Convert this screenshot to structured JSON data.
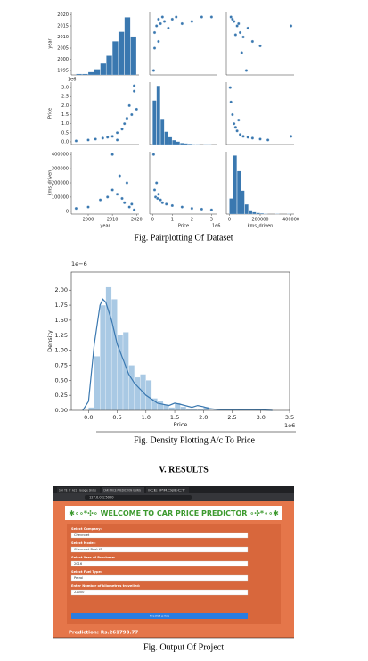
{
  "figures": [
    {
      "caption": "Fig. Pairplotting Of Dataset"
    },
    {
      "caption": "Fig. Density Plotting A/c To Price"
    },
    {
      "caption": "Fig. Output Of Project"
    }
  ],
  "section_heading": "V.   RESULTS",
  "chart_data": [
    {
      "type": "pairplot",
      "color": "#3a78b0",
      "variables": [
        {
          "name": "year",
          "lim": [
            1993,
            2021
          ],
          "ticks": [
            1995,
            2000,
            2005,
            2010,
            2015,
            2020
          ],
          "xticks": [
            2000,
            2010,
            2020
          ]
        },
        {
          "name": "Price",
          "lim": [
            -0.15,
            3.3
          ],
          "ticks": [
            {
              "value": 0,
              "label": "0.0"
            },
            0.5,
            {
              "value": 1,
              "label": "1.0"
            },
            1.5,
            {
              "value": 2,
              "label": "2.0"
            },
            2.5,
            {
              "value": 3,
              "label": "3.0"
            }
          ],
          "xticks": [
            0,
            1,
            2,
            3
          ],
          "offset": "1e6"
        },
        {
          "name": "kms_driven",
          "lim": [
            -20000,
            420000
          ],
          "ticks": [
            0,
            100000,
            200000,
            300000,
            400000
          ],
          "xticks": [
            0,
            200000,
            400000
          ]
        }
      ],
      "panels": [
        {
          "type": "hist",
          "bins": [
            1995,
            1997.5,
            2000,
            2002.5,
            2005,
            2007.5,
            2010,
            2012.5,
            2015,
            2017.5,
            2020
          ],
          "counts": [
            1,
            1,
            3,
            6,
            12,
            20,
            35,
            45,
            60,
            40
          ],
          "ylim": [
            0,
            65
          ]
        },
        {
          "type": "scatter",
          "x": [
            0.1,
            0.2,
            0.3,
            0.4,
            0.5,
            0.6,
            0.8,
            1.0,
            1.2,
            1.5,
            2.0,
            2.5,
            3.0,
            0.1,
            0.3,
            0.05
          ],
          "y": [
            2012,
            2015,
            2018,
            2016,
            2019,
            2017,
            2014,
            2018,
            2019,
            2016,
            2017,
            2019,
            2019,
            2005,
            2008,
            1995
          ]
        },
        {
          "type": "scatter",
          "x": [
            10000,
            30000,
            50000,
            70000,
            90000,
            120000,
            150000,
            200000,
            40000,
            60000,
            20000,
            400000,
            80000,
            110000
          ],
          "y": [
            2019,
            2017,
            2015,
            2012,
            2010,
            2014,
            2008,
            2006,
            2011,
            2016,
            2018,
            2015,
            2003,
            1995
          ]
        },
        {
          "type": "scatter",
          "x": [
            1995,
            2000,
            2003,
            2006,
            2008,
            2010,
            2012,
            2014,
            2015,
            2016,
            2017,
            2018,
            2019,
            2019,
            2020,
            2012
          ],
          "y": [
            0.05,
            0.1,
            0.15,
            0.2,
            0.25,
            0.3,
            0.5,
            0.7,
            1.0,
            1.3,
            2.0,
            1.5,
            3.1,
            2.8,
            1.8,
            0.1
          ]
        },
        {
          "type": "hist",
          "bins": [
            0,
            0.2,
            0.4,
            0.6,
            0.8,
            1.0,
            1.2,
            1.4,
            1.6,
            1.8,
            2.0,
            2.2,
            2.4,
            2.6,
            2.8,
            3.0
          ],
          "counts": [
            120,
            160,
            70,
            35,
            20,
            12,
            8,
            4,
            3,
            2,
            1,
            1,
            0,
            1,
            1
          ],
          "ylim": [
            0,
            170
          ]
        },
        {
          "type": "scatter",
          "x": [
            5000,
            10000,
            20000,
            30000,
            40000,
            50000,
            70000,
            90000,
            120000,
            150000,
            200000,
            250000,
            400000,
            60000
          ],
          "y": [
            3.0,
            2.2,
            1.5,
            1.0,
            0.8,
            0.6,
            0.4,
            0.3,
            0.25,
            0.2,
            0.15,
            0.1,
            0.3,
            1.2
          ]
        },
        {
          "type": "scatter",
          "x": [
            1995,
            2000,
            2005,
            2008,
            2010,
            2012,
            2014,
            2015,
            2016,
            2018,
            2019,
            2010,
            2013,
            2017
          ],
          "y": [
            20000,
            30000,
            80000,
            100000,
            150000,
            120000,
            90000,
            60000,
            200000,
            50000,
            10000,
            400000,
            250000,
            30000
          ]
        },
        {
          "type": "scatter",
          "x": [
            0.05,
            0.1,
            0.2,
            0.3,
            0.4,
            0.5,
            0.7,
            1.0,
            1.5,
            2.0,
            2.5,
            3.0,
            0.15,
            0.25
          ],
          "y": [
            400000,
            150000,
            200000,
            120000,
            80000,
            60000,
            50000,
            40000,
            30000,
            20000,
            15000,
            10000,
            100000,
            90000
          ]
        },
        {
          "type": "hist",
          "bins": [
            0,
            25000,
            50000,
            75000,
            100000,
            125000,
            150000,
            175000,
            200000,
            225000,
            250000,
            275000,
            300000,
            325000,
            350000,
            375000,
            400000
          ],
          "counts": [
            40,
            150,
            110,
            60,
            25,
            10,
            5,
            3,
            2,
            1,
            0,
            0,
            1,
            0,
            0,
            1
          ],
          "ylim": [
            0,
            160
          ]
        }
      ]
    },
    {
      "type": "density",
      "bar_color": "#a9c9e4",
      "line_color": "#3a78b0",
      "x_label": "Price",
      "y_label": "Density",
      "x_offset": "1e6",
      "y_offset": "1e−6",
      "xlim": [
        -0.3,
        3.5
      ],
      "ylim": [
        0,
        2.3
      ],
      "xticks": [
        {
          "value": 0,
          "label": "0.0"
        },
        0.5,
        {
          "value": 1,
          "label": "1.0"
        },
        1.5,
        {
          "value": 2,
          "label": "2.0"
        },
        2.5,
        {
          "value": 3,
          "label": "3.0"
        },
        3.5
      ],
      "yticks": [
        {
          "value": 0,
          "label": "0.00"
        },
        0.25,
        {
          "value": 0.5,
          "label": "0.50"
        },
        0.75,
        {
          "value": 1,
          "label": "1.00"
        },
        1.25,
        {
          "value": 1.5,
          "label": "1.50"
        },
        1.75,
        {
          "value": 2,
          "label": "2.00"
        }
      ],
      "bins": [
        0,
        0.1,
        0.2,
        0.3,
        0.4,
        0.5,
        0.6,
        0.7,
        0.8,
        0.9,
        1.0,
        1.1,
        1.2,
        1.3,
        1.4,
        1.5,
        1.6,
        1.7,
        1.8,
        1.9,
        2.0,
        2.1,
        2.2,
        2.3,
        2.4,
        2.5,
        2.6,
        2.7,
        2.8,
        2.9,
        3.0,
        3.1,
        3.2
      ],
      "counts": [
        0.05,
        0.9,
        1.75,
        2.05,
        1.85,
        1.25,
        1.3,
        0.75,
        0.55,
        0.6,
        0.5,
        0.2,
        0.15,
        0.1,
        0.05,
        0.12,
        0.06,
        0.03,
        0.02,
        0.02,
        0.06,
        0.01,
        0,
        0,
        0,
        0,
        0.01,
        0,
        0,
        0.01,
        0,
        0.01
      ],
      "kde": {
        "x": [
          -0.1,
          0,
          0.1,
          0.2,
          0.25,
          0.3,
          0.4,
          0.5,
          0.6,
          0.7,
          0.8,
          1.0,
          1.2,
          1.4,
          1.5,
          1.6,
          1.8,
          1.9,
          2.0,
          2.1,
          2.3,
          2.6,
          3.0,
          3.2
        ],
        "y": [
          0,
          0.15,
          1.1,
          1.75,
          1.85,
          1.8,
          1.5,
          1.1,
          0.85,
          0.6,
          0.45,
          0.25,
          0.12,
          0.08,
          0.12,
          0.1,
          0.05,
          0.08,
          0.06,
          0.03,
          0.01,
          0.01,
          0.01,
          0
        ]
      }
    }
  ],
  "screenshot": {
    "tabs": [
      "SIH_TE_IT_A21 - Google Slides",
      "CAR PRICE PREDICTION USING",
      "ICE PROJECT"
    ],
    "url": "127.0.0.1:5000",
    "banner": "✱∘∘*✣∘ WELCOME TO CAR PRICE PREDICTOR ∘✣*∘∘✱",
    "fields": [
      {
        "label": "Select Company:",
        "value": "Chevrolet"
      },
      {
        "label": "Select Model:",
        "value": "Chevrolet Beat LT"
      },
      {
        "label": "Select Year of Purchase:",
        "value": "2016"
      },
      {
        "label": "Select Fuel Type:",
        "value": "Petrol"
      },
      {
        "label": "Enter Number of kilometres travelled:",
        "value": "22000"
      }
    ],
    "button": "Predict price",
    "prediction": "Prediction: Rs.261793.77"
  }
}
